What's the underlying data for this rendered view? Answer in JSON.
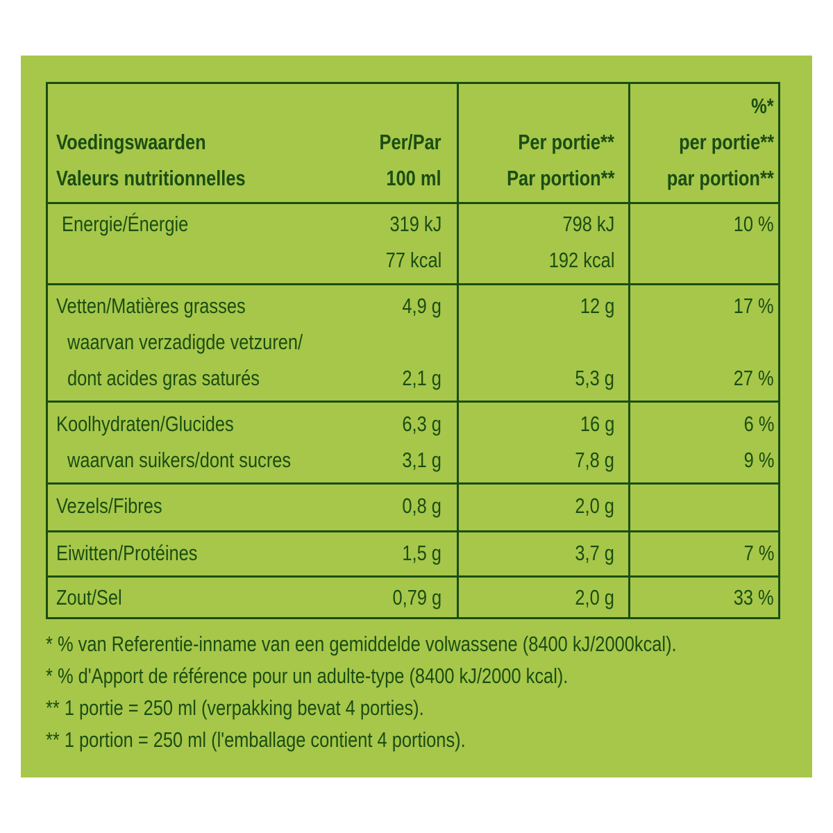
{
  "header": {
    "col1_line1": "Voedingswaarden",
    "col1_line2": "Valeurs nutritionnelles",
    "col2_line1": "Per/Par",
    "col2_line2": "100 ml",
    "col3_line1": "Per portie**",
    "col3_line2": "Par portion**",
    "col4_line1": "%*",
    "col4_line2": "per portie**",
    "col4_line3": "par portion**"
  },
  "rows": {
    "energy": {
      "label": "Energie/Énergie",
      "per100_kj": "319 kJ",
      "per100_kcal": "77 kcal",
      "portion_kj": "798 kJ",
      "portion_kcal": "192 kcal",
      "pct": "10 %"
    },
    "fat": {
      "label": "Vetten/Matières grasses",
      "per100": "4,9 g",
      "portion": "12 g",
      "pct": "17 %"
    },
    "saturates": {
      "label_line1": "waarvan verzadigde vetzuren/",
      "label_line2": "dont acides gras saturés",
      "per100": "2,1 g",
      "portion": "5,3 g",
      "pct": "27 %"
    },
    "carbs": {
      "label": "Koolhydraten/Glucides",
      "per100": "6,3 g",
      "portion": "16 g",
      "pct": "6 %"
    },
    "sugars": {
      "label": "waarvan suikers/dont sucres",
      "per100": "3,1 g",
      "portion": "7,8 g",
      "pct": "9 %"
    },
    "fibre": {
      "label": "Vezels/Fibres",
      "per100": "0,8 g",
      "portion": "2,0 g",
      "pct": ""
    },
    "protein": {
      "label": "Eiwitten/Protéines",
      "per100": "1,5 g",
      "portion": "3,7 g",
      "pct": "7 %"
    },
    "salt": {
      "label": "Zout/Sel",
      "per100": "0,79 g",
      "portion": "2,0 g",
      "pct": "33 %"
    }
  },
  "footnotes": [
    "* % van Referentie-inname van een gemiddelde volwassene (8400 kJ/2000kcal).",
    "* % d'Apport de référence pour un adulte-type (8400 kJ/2000 kcal).",
    "** 1 portie = 250 ml (verpakking bevat 4 porties).",
    "** 1 portion = 250 ml (l'emballage contient 4 portions)."
  ],
  "colors": {
    "background": "#a7c74a",
    "text": "#1a4d12"
  }
}
